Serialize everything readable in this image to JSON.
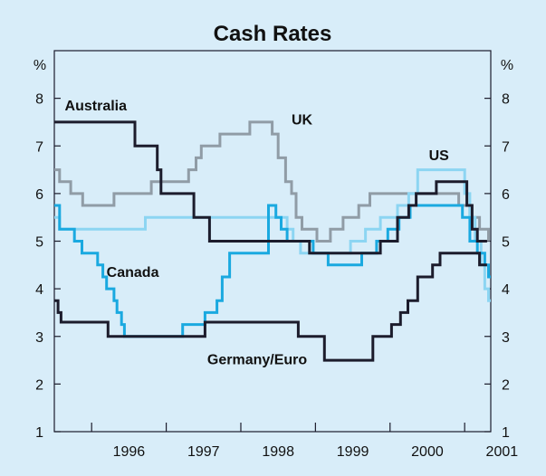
{
  "chart_data": {
    "type": "line",
    "title": "Cash Rates",
    "ylabel_left": "%",
    "ylabel_right": "%",
    "ylim": [
      1,
      9
    ],
    "y_ticks": [
      1,
      2,
      3,
      4,
      5,
      6,
      7,
      8
    ],
    "xlim": [
      1995.5,
      2001.35
    ],
    "x_tick_labels": [
      "1996",
      "1997",
      "1998",
      "1999",
      "2000",
      "2001"
    ],
    "grid": false,
    "series": [
      {
        "name": "Australia",
        "color": "#1c1c2c",
        "step": true,
        "points": [
          [
            1995.5,
            7.5
          ],
          [
            1996.05,
            7.5
          ],
          [
            1996.55,
            7.5
          ],
          [
            1996.58,
            7.0
          ],
          [
            1996.82,
            7.0
          ],
          [
            1996.88,
            6.5
          ],
          [
            1996.93,
            6.0
          ],
          [
            1997.35,
            6.0
          ],
          [
            1997.37,
            5.5
          ],
          [
            1997.55,
            5.5
          ],
          [
            1997.58,
            5.0
          ],
          [
            1998.9,
            5.0
          ],
          [
            1998.92,
            4.75
          ],
          [
            1999.85,
            4.75
          ],
          [
            1999.87,
            5.0
          ],
          [
            2000.08,
            5.0
          ],
          [
            2000.1,
            5.5
          ],
          [
            2000.22,
            5.5
          ],
          [
            2000.25,
            5.75
          ],
          [
            2000.33,
            5.75
          ],
          [
            2000.35,
            6.0
          ],
          [
            2000.6,
            6.0
          ],
          [
            2000.62,
            6.25
          ],
          [
            2001.0,
            6.25
          ],
          [
            2001.03,
            5.75
          ],
          [
            2001.08,
            5.75
          ],
          [
            2001.1,
            5.25
          ],
          [
            2001.15,
            5.25
          ],
          [
            2001.17,
            5.0
          ],
          [
            2001.3,
            5.0
          ]
        ]
      },
      {
        "name": "UK",
        "color": "#909ca6",
        "step": true,
        "points": [
          [
            1995.5,
            6.5
          ],
          [
            1995.55,
            6.5
          ],
          [
            1995.57,
            6.25
          ],
          [
            1995.7,
            6.25
          ],
          [
            1995.72,
            6.0
          ],
          [
            1995.86,
            6.0
          ],
          [
            1995.88,
            5.75
          ],
          [
            1996.28,
            5.75
          ],
          [
            1996.3,
            6.0
          ],
          [
            1996.7,
            6.0
          ],
          [
            1996.78,
            6.0
          ],
          [
            1996.8,
            6.25
          ],
          [
            1996.88,
            6.25
          ],
          [
            1996.95,
            6.25
          ],
          [
            1997.27,
            6.25
          ],
          [
            1997.3,
            6.5
          ],
          [
            1997.35,
            6.5
          ],
          [
            1997.4,
            6.75
          ],
          [
            1997.45,
            6.75
          ],
          [
            1997.47,
            7.0
          ],
          [
            1997.7,
            7.0
          ],
          [
            1997.72,
            7.25
          ],
          [
            1998.1,
            7.25
          ],
          [
            1998.12,
            7.5
          ],
          [
            1998.4,
            7.5
          ],
          [
            1998.42,
            7.25
          ],
          [
            1998.47,
            7.25
          ],
          [
            1998.5,
            6.75
          ],
          [
            1998.58,
            6.75
          ],
          [
            1998.6,
            6.25
          ],
          [
            1998.65,
            6.25
          ],
          [
            1998.68,
            6.0
          ],
          [
            1998.72,
            6.0
          ],
          [
            1998.74,
            5.5
          ],
          [
            1998.8,
            5.5
          ],
          [
            1998.82,
            5.25
          ],
          [
            1999.0,
            5.25
          ],
          [
            1999.02,
            5.0
          ],
          [
            1999.18,
            5.0
          ],
          [
            1999.2,
            5.25
          ],
          [
            1999.35,
            5.25
          ],
          [
            1999.37,
            5.5
          ],
          [
            1999.55,
            5.5
          ],
          [
            1999.58,
            5.75
          ],
          [
            1999.7,
            5.75
          ],
          [
            1999.73,
            6.0
          ],
          [
            2000.9,
            6.0
          ],
          [
            2000.92,
            5.75
          ],
          [
            2001.05,
            5.75
          ],
          [
            2001.07,
            5.5
          ],
          [
            2001.18,
            5.5
          ],
          [
            2001.2,
            5.25
          ],
          [
            2001.3,
            5.25
          ],
          [
            2001.32,
            5.0
          ]
        ]
      },
      {
        "name": "US",
        "color": "#8cd5f2",
        "step": true,
        "points": [
          [
            1995.5,
            5.5
          ],
          [
            1995.55,
            5.5
          ],
          [
            1995.57,
            5.25
          ],
          [
            1996.2,
            5.25
          ],
          [
            1996.22,
            5.25
          ],
          [
            1996.7,
            5.25
          ],
          [
            1996.72,
            5.5
          ],
          [
            1998.6,
            5.5
          ],
          [
            1998.62,
            5.25
          ],
          [
            1998.68,
            5.25
          ],
          [
            1998.7,
            5.0
          ],
          [
            1998.78,
            5.0
          ],
          [
            1998.8,
            4.75
          ],
          [
            1999.45,
            4.75
          ],
          [
            1999.47,
            5.0
          ],
          [
            1999.65,
            5.0
          ],
          [
            1999.67,
            5.25
          ],
          [
            1999.85,
            5.25
          ],
          [
            1999.87,
            5.5
          ],
          [
            2000.08,
            5.5
          ],
          [
            2000.1,
            5.75
          ],
          [
            2000.22,
            5.75
          ],
          [
            2000.25,
            6.0
          ],
          [
            2000.35,
            6.0
          ],
          [
            2000.37,
            6.5
          ],
          [
            2000.98,
            6.5
          ],
          [
            2001.0,
            6.0
          ],
          [
            2001.05,
            6.0
          ],
          [
            2001.07,
            5.5
          ],
          [
            2001.12,
            5.5
          ],
          [
            2001.14,
            5.0
          ],
          [
            2001.2,
            5.0
          ],
          [
            2001.22,
            4.5
          ],
          [
            2001.25,
            4.5
          ],
          [
            2001.27,
            4.0
          ],
          [
            2001.3,
            4.0
          ],
          [
            2001.32,
            3.75
          ],
          [
            2001.38,
            3.75
          ]
        ]
      },
      {
        "name": "Canada",
        "color": "#1aa9e0",
        "step": true,
        "points": [
          [
            1995.5,
            5.75
          ],
          [
            1995.55,
            5.75
          ],
          [
            1995.57,
            5.25
          ],
          [
            1995.75,
            5.25
          ],
          [
            1995.77,
            5.0
          ],
          [
            1995.85,
            5.0
          ],
          [
            1995.87,
            4.75
          ],
          [
            1996.0,
            4.75
          ],
          [
            1996.05,
            4.75
          ],
          [
            1996.08,
            4.5
          ],
          [
            1996.12,
            4.5
          ],
          [
            1996.15,
            4.25
          ],
          [
            1996.18,
            4.25
          ],
          [
            1996.2,
            4.0
          ],
          [
            1996.28,
            4.0
          ],
          [
            1996.3,
            3.75
          ],
          [
            1996.32,
            3.75
          ],
          [
            1996.34,
            3.5
          ],
          [
            1996.38,
            3.5
          ],
          [
            1996.4,
            3.25
          ],
          [
            1996.42,
            3.25
          ],
          [
            1996.44,
            3.0
          ],
          [
            1997.2,
            3.0
          ],
          [
            1997.22,
            3.25
          ],
          [
            1997.5,
            3.25
          ],
          [
            1997.52,
            3.5
          ],
          [
            1997.65,
            3.5
          ],
          [
            1997.68,
            3.75
          ],
          [
            1997.72,
            3.75
          ],
          [
            1997.75,
            4.25
          ],
          [
            1997.82,
            4.25
          ],
          [
            1997.85,
            4.75
          ],
          [
            1998.35,
            4.75
          ],
          [
            1998.37,
            5.75
          ],
          [
            1998.45,
            5.75
          ],
          [
            1998.47,
            5.5
          ],
          [
            1998.52,
            5.5
          ],
          [
            1998.54,
            5.25
          ],
          [
            1998.6,
            5.25
          ],
          [
            1998.62,
            5.0
          ],
          [
            1998.95,
            5.0
          ],
          [
            1998.97,
            4.75
          ],
          [
            1999.15,
            4.75
          ],
          [
            1999.17,
            4.5
          ],
          [
            1999.6,
            4.5
          ],
          [
            1999.62,
            4.75
          ],
          [
            1999.8,
            4.75
          ],
          [
            1999.82,
            5.0
          ],
          [
            1999.95,
            5.0
          ],
          [
            1999.97,
            5.25
          ],
          [
            2000.1,
            5.25
          ],
          [
            2000.12,
            5.5
          ],
          [
            2000.25,
            5.5
          ],
          [
            2000.27,
            5.75
          ],
          [
            2000.95,
            5.75
          ],
          [
            2000.97,
            5.5
          ],
          [
            2001.05,
            5.5
          ],
          [
            2001.07,
            5.0
          ],
          [
            2001.15,
            5.0
          ],
          [
            2001.17,
            4.75
          ],
          [
            2001.25,
            4.75
          ],
          [
            2001.27,
            4.5
          ],
          [
            2001.3,
            4.5
          ],
          [
            2001.32,
            4.25
          ],
          [
            2001.35,
            4.25
          ]
        ]
      },
      {
        "name": "Germany/Euro",
        "color": "#1c1c2c",
        "step": true,
        "points": [
          [
            1995.5,
            3.75
          ],
          [
            1995.53,
            3.75
          ],
          [
            1995.55,
            3.5
          ],
          [
            1995.57,
            3.5
          ],
          [
            1995.59,
            3.3
          ],
          [
            1996.2,
            3.3
          ],
          [
            1996.22,
            3.0
          ],
          [
            1997.5,
            3.0
          ],
          [
            1997.52,
            3.3
          ],
          [
            1998.75,
            3.3
          ],
          [
            1998.77,
            3.0
          ],
          [
            1999.1,
            3.0
          ],
          [
            1999.12,
            2.5
          ],
          [
            1999.75,
            2.5
          ],
          [
            1999.77,
            3.0
          ],
          [
            2000.0,
            3.0
          ],
          [
            2000.02,
            3.25
          ],
          [
            2000.12,
            3.25
          ],
          [
            2000.14,
            3.5
          ],
          [
            2000.22,
            3.5
          ],
          [
            2000.24,
            3.75
          ],
          [
            2000.35,
            3.75
          ],
          [
            2000.37,
            4.25
          ],
          [
            2000.55,
            4.25
          ],
          [
            2000.57,
            4.5
          ],
          [
            2000.65,
            4.5
          ],
          [
            2000.67,
            4.75
          ],
          [
            2001.18,
            4.75
          ],
          [
            2001.2,
            4.5
          ],
          [
            2001.3,
            4.5
          ]
        ]
      }
    ],
    "labels": [
      {
        "series": "Australia",
        "text": "Australia",
        "x": 1995.64,
        "y": 7.75
      },
      {
        "series": "UK",
        "text": "UK",
        "x": 1998.68,
        "y": 7.45
      },
      {
        "series": "US",
        "text": "US",
        "x": 2000.52,
        "y": 6.7
      },
      {
        "series": "Canada",
        "text": "Canada",
        "x": 1996.2,
        "y": 4.25
      },
      {
        "series": "Germany/Euro",
        "text": "Germany/Euro",
        "x": 1997.55,
        "y": 2.42
      }
    ]
  }
}
